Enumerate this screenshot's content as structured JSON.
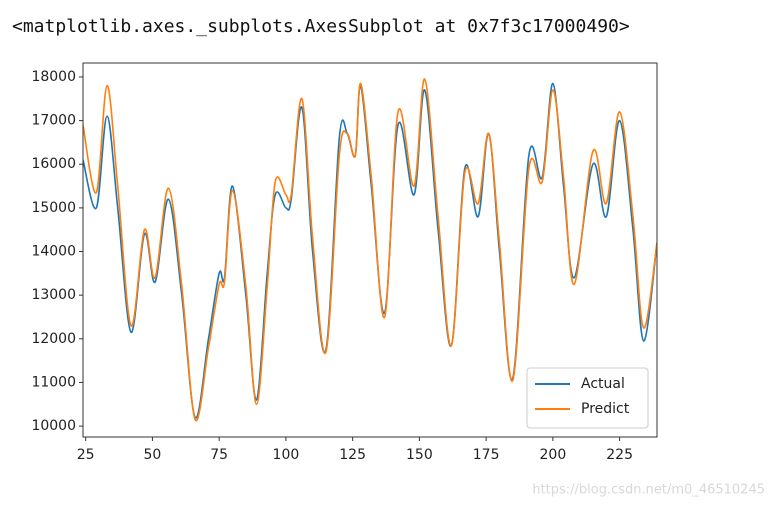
{
  "header": "<matplotlib.axes._subplots.AxesSubplot at 0x7f3c17000490>",
  "watermark": "https://blog.csdn.net/m0_46510245",
  "chart_data": {
    "type": "line",
    "x": [
      24,
      29,
      33,
      37,
      42,
      47,
      51,
      56,
      61,
      66,
      71,
      75,
      77,
      80,
      85,
      89,
      93,
      96,
      100,
      102,
      106,
      110,
      115,
      120,
      123,
      126,
      128,
      132,
      137,
      142,
      148,
      152,
      157,
      162,
      167,
      172,
      176,
      180,
      185,
      191,
      196,
      200,
      204,
      208,
      215,
      220,
      225,
      230,
      234,
      239
    ],
    "series": [
      {
        "name": "Actual",
        "color": "#1f77b4",
        "values": [
          16100,
          15000,
          17100,
          15000,
          12150,
          14400,
          13300,
          15200,
          13000,
          10200,
          12000,
          13500,
          13400,
          15500,
          13000,
          10600,
          13500,
          15300,
          15000,
          15200,
          17300,
          14000,
          11750,
          16600,
          16700,
          16200,
          17800,
          15500,
          12600,
          16900,
          15300,
          17700,
          14500,
          11850,
          15900,
          14800,
          16700,
          14000,
          11100,
          16200,
          15700,
          17850,
          15500,
          13400,
          16000,
          14800,
          17000,
          14500,
          11950,
          14200
        ]
      },
      {
        "name": "Predict",
        "color": "#ff7f0e",
        "values": [
          16900,
          15350,
          17800,
          15500,
          12300,
          14500,
          13400,
          15450,
          13200,
          10150,
          11800,
          13250,
          13300,
          15400,
          13200,
          10500,
          13200,
          15600,
          15300,
          15300,
          17500,
          14300,
          11700,
          16200,
          16700,
          16200,
          17850,
          15700,
          12500,
          17200,
          15500,
          17950,
          14800,
          11850,
          15800,
          15100,
          16700,
          14200,
          11050,
          15900,
          15600,
          17700,
          15700,
          13250,
          16300,
          15100,
          17200,
          14800,
          12250,
          14200
        ]
      }
    ],
    "xlim": [
      24,
      239
    ],
    "ylim": [
      9750,
      18320
    ],
    "xticks": [
      25,
      50,
      75,
      100,
      125,
      150,
      175,
      200,
      225
    ],
    "yticks": [
      10000,
      11000,
      12000,
      13000,
      14000,
      15000,
      16000,
      17000,
      18000
    ],
    "legend": "lower right"
  }
}
